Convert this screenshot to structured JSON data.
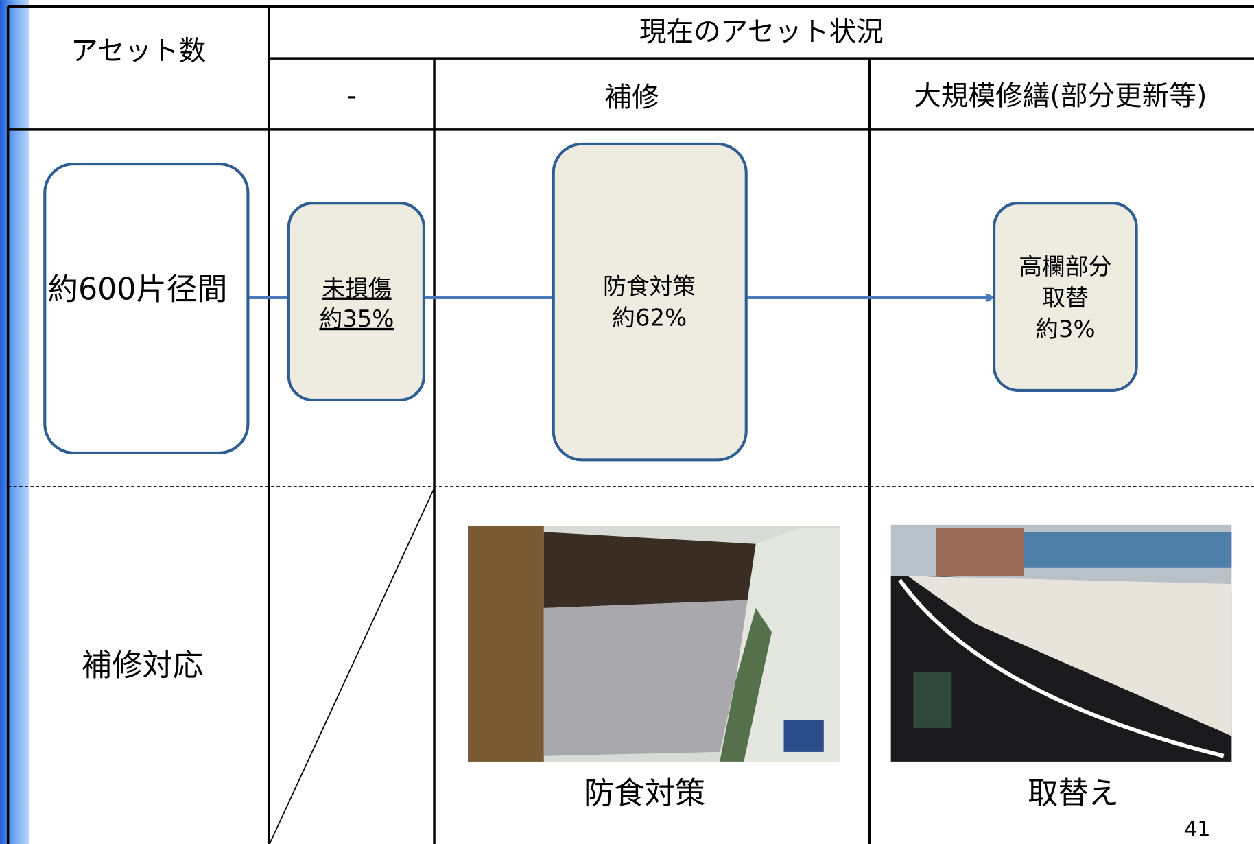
{
  "header": {
    "asset_count": "アセット数",
    "current_status": "現在のアセット状況",
    "columns": [
      "-",
      "補修",
      "大規模修繕(部分更新等)"
    ]
  },
  "flow": {
    "total": "約600片径間",
    "nodes": [
      {
        "lines": [
          "未損傷",
          "約35%"
        ]
      },
      {
        "lines": [
          "防食対策",
          "約62%"
        ]
      },
      {
        "lines": [
          "高欄部分",
          "取替",
          "約3%"
        ]
      }
    ]
  },
  "repair_row": {
    "label": "補修対応",
    "captions": [
      "防食対策",
      "取替え"
    ]
  },
  "page_number": "41"
}
